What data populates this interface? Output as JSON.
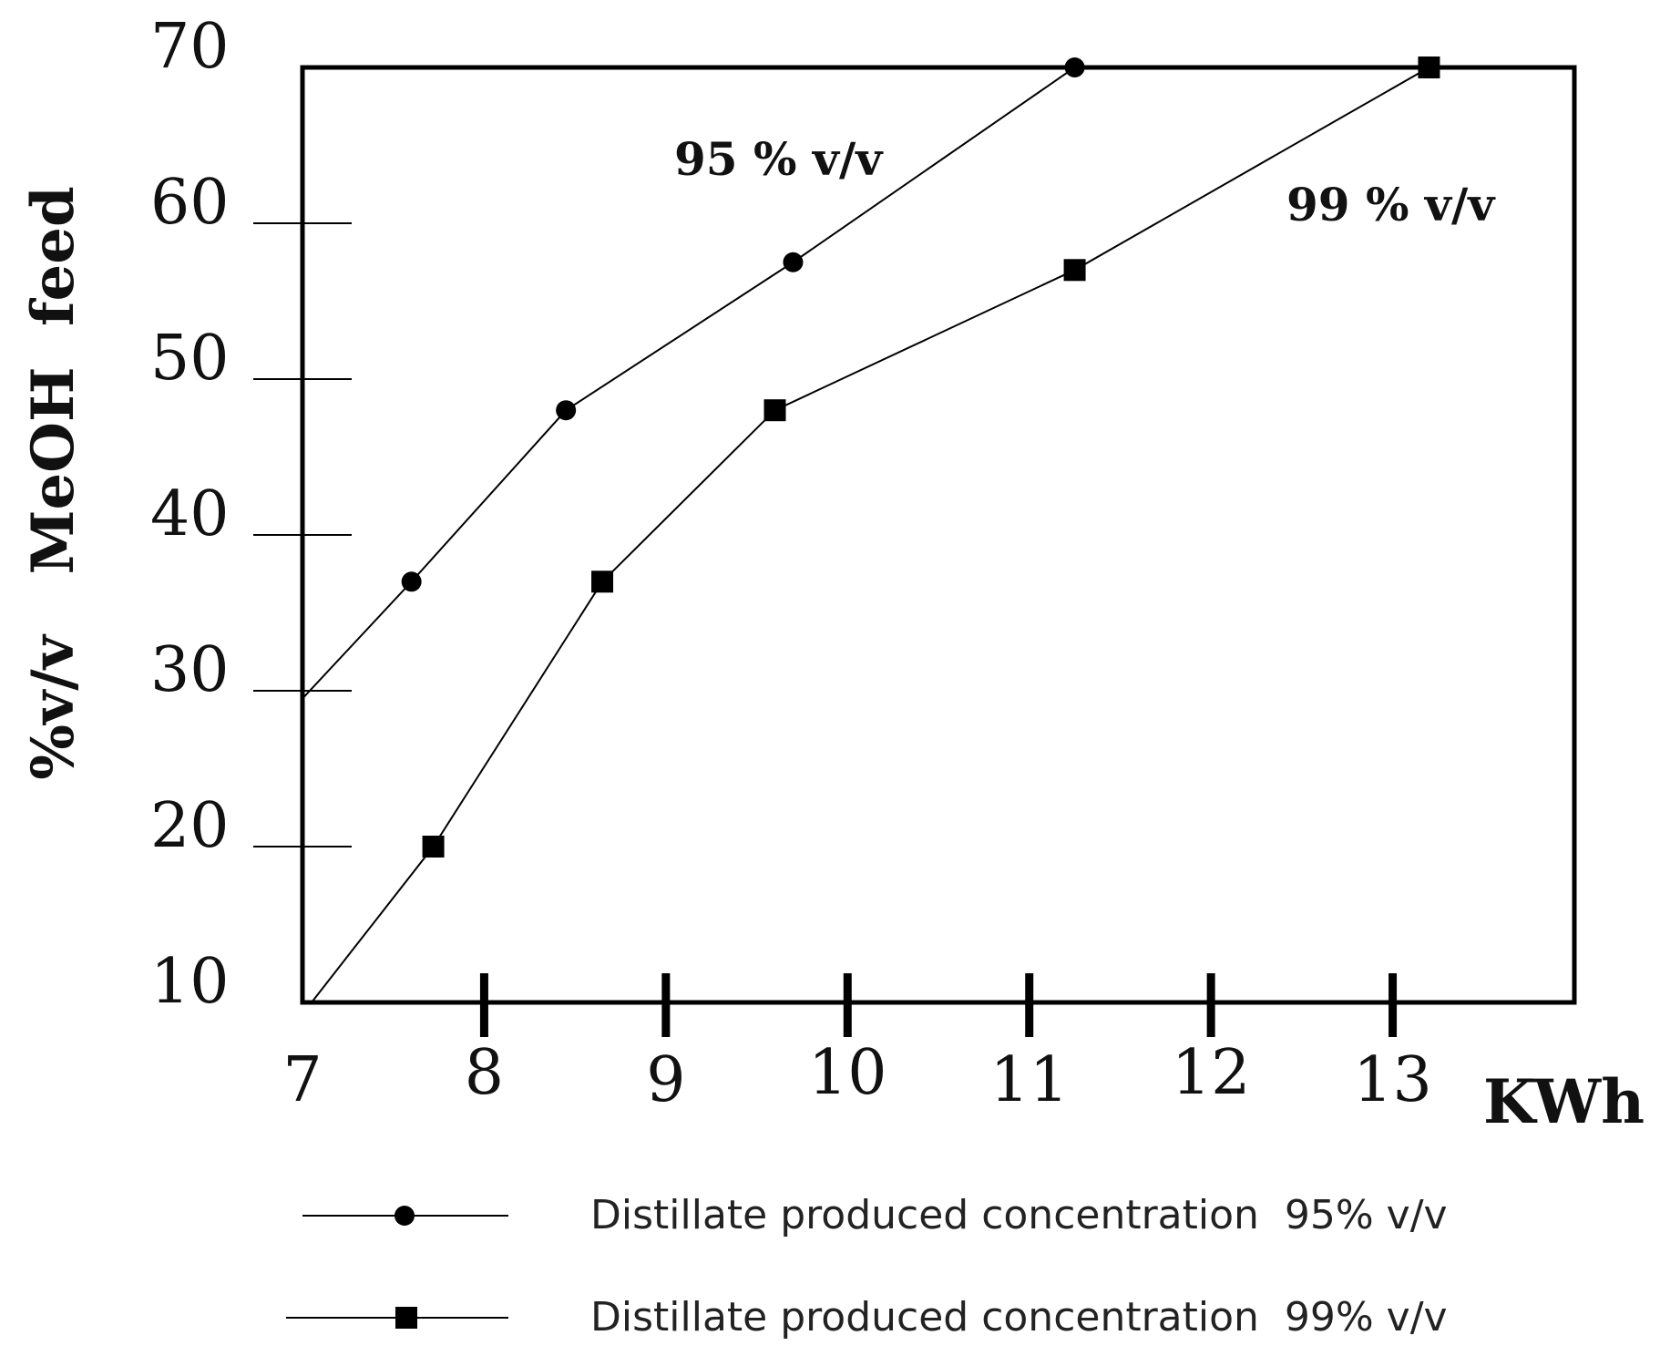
{
  "chart_data": {
    "type": "line",
    "title": "",
    "xlabel": "KWh",
    "ylabel": "%v/v   MeOH  feed",
    "xlim": [
      7,
      14
    ],
    "ylim": [
      10,
      70
    ],
    "x_ticks": [
      "7",
      "8",
      "9",
      "10",
      "11",
      "12",
      "13"
    ],
    "y_ticks": [
      "10",
      "20",
      "30",
      "40",
      "50",
      "60",
      "70"
    ],
    "grid": false,
    "legend_position": "bottom",
    "series": [
      {
        "name": "Distillate produced concentration  95% v/v",
        "annotation": "95 % v/v",
        "marker": "circle",
        "color": "#000000",
        "x": [
          7.0,
          7.6,
          8.45,
          9.7,
          11.25
        ],
        "y": [
          29.5,
          37,
          48,
          57.5,
          70
        ]
      },
      {
        "name": "Distillate produced concentration  99% v/v",
        "annotation": "99 % v/v",
        "marker": "square",
        "color": "#000000",
        "x": [
          7.05,
          7.72,
          8.65,
          9.6,
          11.25,
          13.2
        ],
        "y": [
          10,
          20,
          37,
          48,
          57,
          70
        ]
      }
    ]
  }
}
